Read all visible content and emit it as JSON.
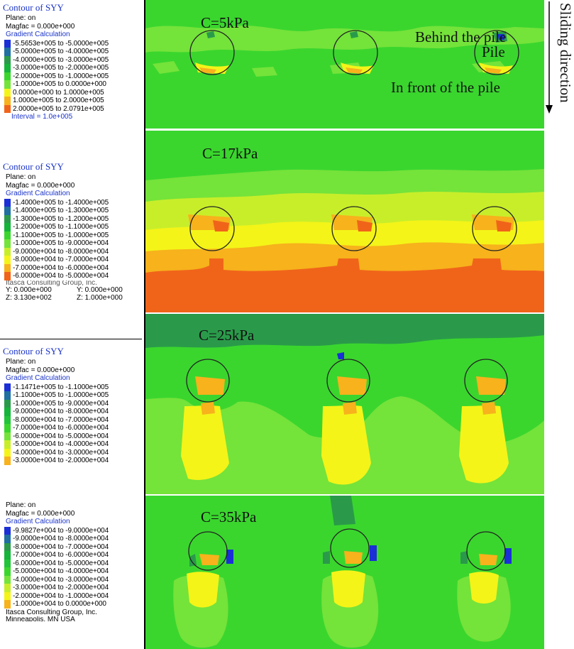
{
  "legends": [
    {
      "title": "Contour of SYY",
      "plane": "Plane: on",
      "magfac": "Magfac = 0.000e+000",
      "method": "Gradient Calculation",
      "items": [
        {
          "label": "-5.5653e+005 to -5.0000e+005",
          "color": "#1b2fd6"
        },
        {
          "label": "-5.0000e+005 to -4.0000e+005",
          "color": "#1f6fa0"
        },
        {
          "label": "-4.0000e+005 to -3.0000e+005",
          "color": "#2a9a4a"
        },
        {
          "label": "-3.0000e+005 to -2.0000e+005",
          "color": "#16b43a"
        },
        {
          "label": "-2.0000e+005 to -1.0000e+005",
          "color": "#3ad62e"
        },
        {
          "label": "-1.0000e+005 to  0.0000e+000",
          "color": "#74e33a"
        },
        {
          "label": "0.0000e+000 to  1.0000e+005",
          "color": "#f4f418"
        },
        {
          "label": "1.0000e+005 to  2.0000e+005",
          "color": "#f7b21c"
        },
        {
          "label": "2.0000e+005 to  2.0791e+005",
          "color": "#f0641a"
        }
      ],
      "interval": "Interval = 1.0e+005"
    },
    {
      "title": "Contour of SYY",
      "plane": "Plane: on",
      "magfac": "Magfac =  0.000e+000",
      "method": "Gradient Calculation",
      "items": [
        {
          "label": "-1.4000e+005 to -1.4000e+005",
          "color": "#1b2fd6"
        },
        {
          "label": "-1.4000e+005 to -1.3000e+005",
          "color": "#1f6fa0"
        },
        {
          "label": "-1.3000e+005 to -1.2000e+005",
          "color": "#2a9a4a"
        },
        {
          "label": "-1.2000e+005 to -1.1000e+005",
          "color": "#16b43a"
        },
        {
          "label": "-1.1000e+005 to -1.0000e+005",
          "color": "#3ad62e"
        },
        {
          "label": "-1.0000e+005 to -9.0000e+004",
          "color": "#74e33a"
        },
        {
          "label": "-9.0000e+004 to -8.0000e+004",
          "color": "#c8ee2a"
        },
        {
          "label": "-8.0000e+004 to -7.0000e+004",
          "color": "#f4f418"
        },
        {
          "label": "-7.0000e+004 to -6.0000e+004",
          "color": "#f7b21c"
        },
        {
          "label": "-6.0000e+004 to -5.0000e+004",
          "color": "#f0641a"
        }
      ],
      "footer": "Itasca Consulting Group, Inc.",
      "coords_a": "Y: 0.000e+000",
      "coords_b": "Y: 0.000e+000",
      "coords_c": "Z: 3.130e+002",
      "coords_d": "Z: 1.000e+000"
    },
    {
      "title": "Contour of SYY",
      "plane": "Plane: on",
      "magfac": "Magfac = 0.000e+000",
      "method": "Gradient Calculation",
      "items": [
        {
          "label": "-1.1471e+005 to -1.1000e+005",
          "color": "#1b2fd6"
        },
        {
          "label": "-1.1000e+005 to -1.0000e+005",
          "color": "#1f6fa0"
        },
        {
          "label": "-1.0000e+005 to -9.0000e+004",
          "color": "#2a9a4a"
        },
        {
          "label": "-9.0000e+004 to -8.0000e+004",
          "color": "#16b43a"
        },
        {
          "label": "-8.0000e+004 to -7.0000e+004",
          "color": "#22c43a"
        },
        {
          "label": "-7.0000e+004 to -6.0000e+004",
          "color": "#3ad62e"
        },
        {
          "label": "-6.0000e+004 to -5.0000e+004",
          "color": "#74e33a"
        },
        {
          "label": "-5.0000e+004 to -4.0000e+004",
          "color": "#c8ee2a"
        },
        {
          "label": "-4.0000e+004 to -3.0000e+004",
          "color": "#f4f418"
        },
        {
          "label": "-3.0000e+004 to -2.0000e+004",
          "color": "#f7b21c"
        }
      ]
    },
    {
      "plane": "Plane: on",
      "magfac": "Magfac = 0.000e+000",
      "method": "Gradient Calculation",
      "items": [
        {
          "label": "-9.9827e+004 to -9.0000e+004",
          "color": "#1b2fd6"
        },
        {
          "label": "-9.0000e+004 to -8.0000e+004",
          "color": "#1f6fa0"
        },
        {
          "label": "-8.0000e+004 to -7.0000e+004",
          "color": "#2a9a4a"
        },
        {
          "label": "-7.0000e+004 to -6.0000e+004",
          "color": "#16b43a"
        },
        {
          "label": "-6.0000e+004 to -5.0000e+004",
          "color": "#22c43a"
        },
        {
          "label": "-5.0000e+004 to -4.0000e+004",
          "color": "#3ad62e"
        },
        {
          "label": "-4.0000e+004 to -3.0000e+004",
          "color": "#74e33a"
        },
        {
          "label": "-3.0000e+004 to -2.0000e+004",
          "color": "#c8ee2a"
        },
        {
          "label": "-2.0000e+004 to -1.0000e+004",
          "color": "#f4f418"
        },
        {
          "label": "-1.0000e+004 to  0.0000e+000",
          "color": "#f7b21c"
        }
      ],
      "footer": "Itasca Consulting Group, Inc.",
      "footer2": "Minneapolis, MN  USA"
    }
  ],
  "panels": [
    {
      "label": "C=5kPa"
    },
    {
      "label": "C=17kPa"
    },
    {
      "label": "C=25kPa"
    },
    {
      "label": "C=35kPa"
    }
  ],
  "annotations": {
    "behind": "Behind the pile",
    "pile": "Pile",
    "front": "In front of the pile",
    "sliding": "Sliding direction"
  },
  "colors": {
    "green": "#3ad62e",
    "light_green": "#74e33a",
    "yellow_green": "#c8ee2a",
    "yellow": "#f4f418",
    "orange": "#f7b21c",
    "red_orange": "#f0641a",
    "teal": "#2a9a4a",
    "blue": "#1b2fd6",
    "pile_outline": "#222222"
  }
}
